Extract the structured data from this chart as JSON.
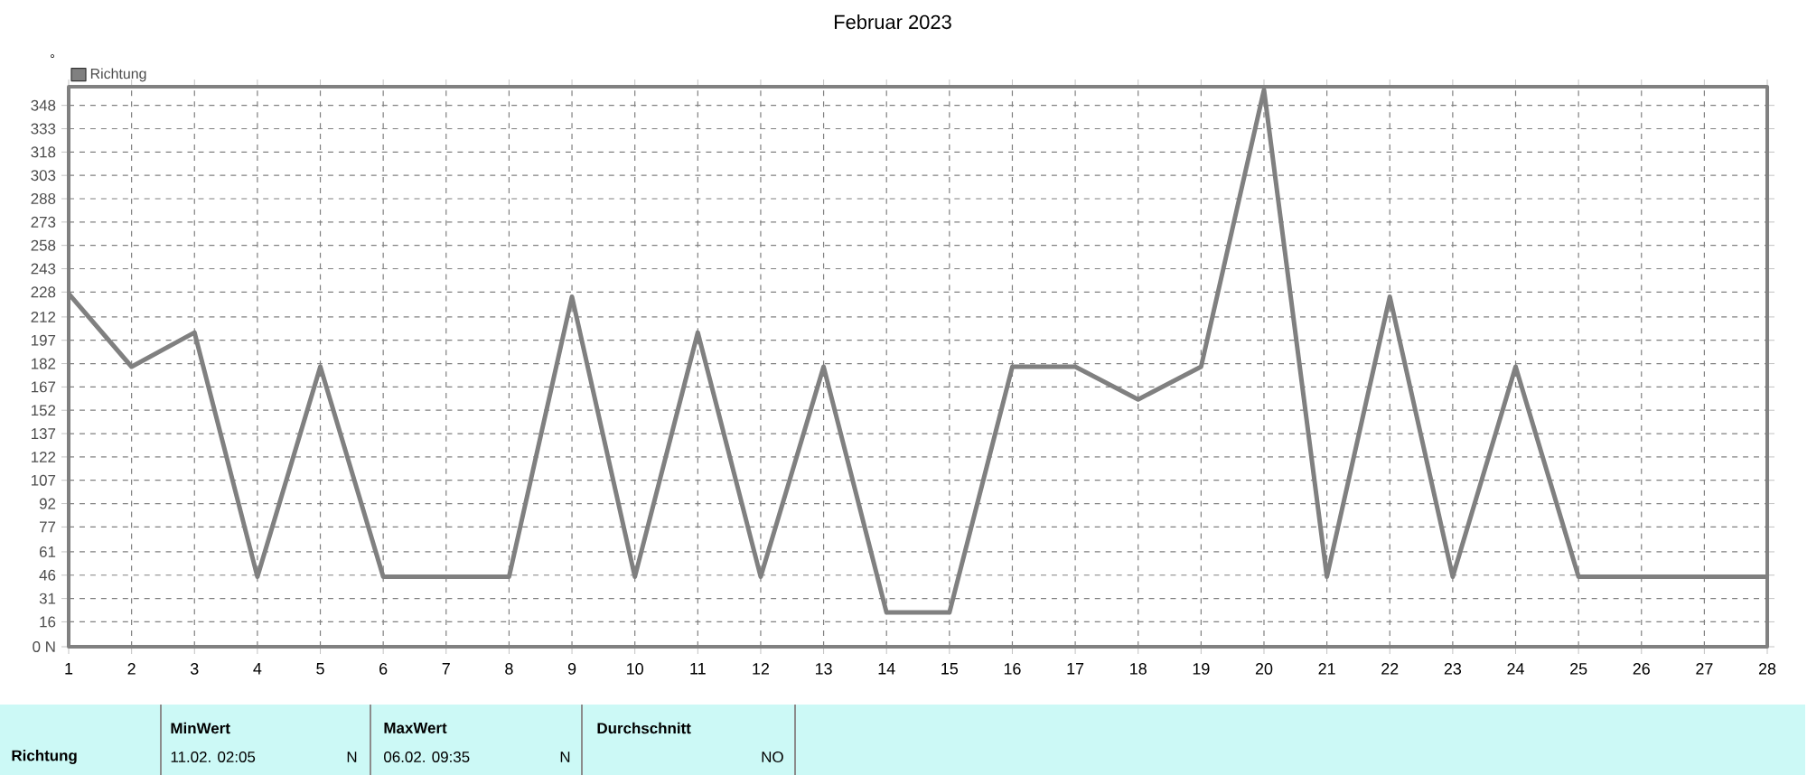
{
  "chart_data": {
    "type": "line",
    "title": "Februar 2023",
    "ylabel": "°",
    "x": [
      1,
      2,
      3,
      4,
      5,
      6,
      7,
      8,
      9,
      10,
      11,
      12,
      13,
      14,
      15,
      16,
      17,
      18,
      19,
      20,
      21,
      22,
      23,
      24,
      25,
      26,
      27,
      28
    ],
    "series": [
      {
        "name": "Richtung",
        "color": "#808080",
        "values": [
          227,
          180,
          202,
          45,
          180,
          45,
          45,
          45,
          225,
          45,
          202,
          45,
          180,
          22,
          22,
          180,
          180,
          159,
          180,
          358,
          45,
          225,
          45,
          180,
          45,
          45,
          45,
          45
        ]
      }
    ],
    "xlim": [
      1,
      28
    ],
    "xticks": [
      1,
      2,
      3,
      4,
      5,
      6,
      7,
      8,
      9,
      10,
      11,
      12,
      13,
      14,
      15,
      16,
      17,
      18,
      19,
      20,
      21,
      22,
      23,
      24,
      25,
      26,
      27,
      28
    ],
    "ylim": [
      0,
      360
    ],
    "yticks": [
      {
        "value": 0,
        "label": "0 N"
      },
      16,
      31,
      46,
      61,
      77,
      92,
      107,
      122,
      137,
      152,
      167,
      182,
      197,
      212,
      228,
      243,
      258,
      273,
      288,
      303,
      318,
      333,
      348
    ],
    "grid": true,
    "legend": "top left",
    "marker": "none",
    "line_style": "solid",
    "annotations": [
      "Richtung",
      "MinWert",
      "11.02.  02:05",
      "N",
      "MaxWert",
      "06.02.  09:35",
      "N",
      "Durchschnitt",
      "NO"
    ]
  }
}
